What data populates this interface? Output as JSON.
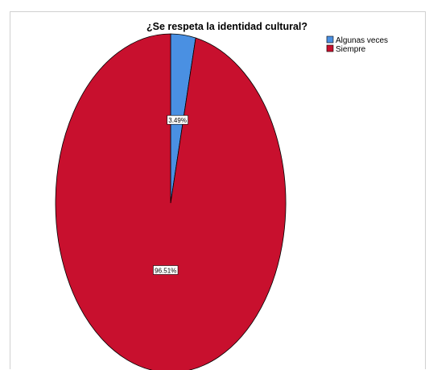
{
  "chart_data": {
    "type": "pie",
    "title": "¿Se respeta la identidad cultural?",
    "categories": [
      "Algunas veces",
      "Siempre"
    ],
    "values": [
      3.49,
      96.51
    ],
    "labels": [
      "3.49%",
      "96.51%"
    ],
    "colors": [
      "#4a90e2",
      "#c8102e"
    ],
    "legend_position": "top-right"
  }
}
